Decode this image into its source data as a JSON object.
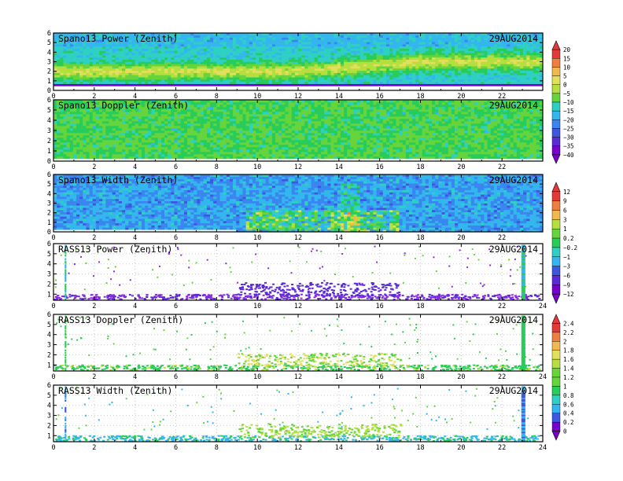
{
  "colors": {
    "spectral_scale": [
      "#7700cc",
      "#5a2bd6",
      "#3f57e0",
      "#3a86f0",
      "#33b6ee",
      "#2fd0c4",
      "#28cc5a",
      "#66d43a",
      "#b4df3e",
      "#e2df5a",
      "#f0b94e",
      "#ee7f3e",
      "#e23a3a"
    ],
    "rass_scale": [
      "#7700cc",
      "#3f57e0",
      "#33b6ee",
      "#2fd0c4",
      "#28cc5a",
      "#66d43a",
      "#b4df3e",
      "#e2df5a",
      "#f0b94e",
      "#ee7f3e",
      "#e23a3a"
    ]
  },
  "chart_data": [
    {
      "type": "heatmap",
      "title": "Spano13 Power (Zenith)",
      "date": "29AUG2014",
      "x_ticks": [
        "0",
        "2",
        "4",
        "6",
        "8",
        "10",
        "12",
        "14",
        "16",
        "18",
        "20",
        "22"
      ],
      "y_ticks": [
        "0",
        "1",
        "2",
        "3",
        "4",
        "5",
        "6"
      ],
      "xlim": [
        0,
        24
      ],
      "ylim": [
        0,
        6
      ],
      "colorbar": [
        "20",
        "15",
        "10",
        "5",
        "0",
        "−5",
        "−10",
        "−15",
        "−20",
        "−25",
        "−30",
        "−35",
        "−40"
      ],
      "pattern": "power"
    },
    {
      "type": "heatmap",
      "title": "Spano13 Doppler (Zenith)",
      "date": "29AUG2014",
      "x_ticks": [
        "0",
        "2",
        "4",
        "6",
        "8",
        "10",
        "12",
        "14",
        "16",
        "18",
        "20",
        "22"
      ],
      "y_ticks": [
        "0",
        "1",
        "2",
        "3",
        "4",
        "5",
        "6"
      ],
      "xlim": [
        0,
        24
      ],
      "ylim": [
        0,
        6
      ],
      "pattern": "doppler"
    },
    {
      "type": "heatmap",
      "title": "Spano13 Width (Zenith)",
      "date": "29AUG2014",
      "x_ticks": [
        "0",
        "2",
        "4",
        "6",
        "8",
        "10",
        "12",
        "14",
        "16",
        "18",
        "20",
        "22"
      ],
      "y_ticks": [
        "0",
        "1",
        "2",
        "3",
        "4",
        "5",
        "6"
      ],
      "xlim": [
        0,
        24
      ],
      "ylim": [
        0,
        6
      ],
      "colorbar": [
        "12",
        "9",
        "6",
        "3",
        "1",
        "0.2",
        "−0.2",
        "−1",
        "−3",
        "−6",
        "−9",
        "−12"
      ],
      "pattern": "width"
    },
    {
      "type": "scatter",
      "title": "RASS13 Power (Zenith)",
      "date": "29AUG2014",
      "x_ticks": [
        "0",
        "2",
        "4",
        "6",
        "8",
        "10",
        "12",
        "14",
        "16",
        "18",
        "20",
        "22",
        "24"
      ],
      "y_ticks": [
        "1",
        "2",
        "3",
        "4",
        "5",
        "6"
      ],
      "xlim": [
        0,
        24
      ],
      "ylim": [
        0.4,
        6
      ],
      "pattern": "rass_power"
    },
    {
      "type": "scatter",
      "title": "RASS13 Doppler (Zenith)",
      "date": "29AUG2014",
      "x_ticks": [
        "0",
        "2",
        "4",
        "6",
        "8",
        "10",
        "12",
        "14",
        "16",
        "18",
        "20",
        "22",
        "24"
      ],
      "y_ticks": [
        "1",
        "2",
        "3",
        "4",
        "5",
        "6"
      ],
      "xlim": [
        0,
        24
      ],
      "ylim": [
        0.4,
        6
      ],
      "colorbar": [
        "2.4",
        "2.2",
        "2",
        "1.8",
        "1.6",
        "1.4",
        "1.2",
        "1",
        "0.8",
        "0.6",
        "0.4",
        "0.2",
        "0"
      ],
      "pattern": "rass_doppler"
    },
    {
      "type": "scatter",
      "title": "RASS13 Width (Zenith)",
      "date": "29AUG2014",
      "x_ticks": [
        "0",
        "2",
        "4",
        "6",
        "8",
        "10",
        "12",
        "14",
        "16",
        "18",
        "20",
        "22",
        "24"
      ],
      "y_ticks": [
        "1",
        "2",
        "3",
        "4",
        "5",
        "6"
      ],
      "xlim": [
        0,
        24
      ],
      "ylim": [
        0.4,
        6
      ],
      "pattern": "rass_width"
    }
  ]
}
